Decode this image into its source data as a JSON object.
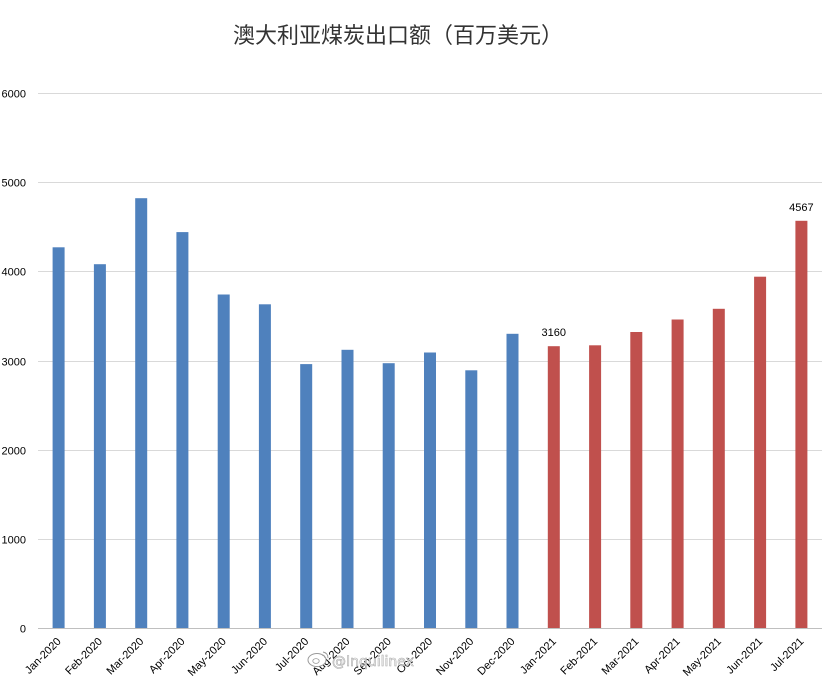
{
  "chart_data": {
    "type": "bar",
    "title": "澳大利亚煤炭出口额（百万美元）",
    "xlabel": "",
    "ylabel": "",
    "ylim": [
      0,
      6000
    ],
    "y_ticks": [
      0,
      1000,
      2000,
      3000,
      4000,
      5000,
      6000
    ],
    "grid": true,
    "legend": "none",
    "categories": [
      "Jan-2020",
      "Feb-2020",
      "Mar-2020",
      "Apr-2020",
      "May-2020",
      "Jun-2020",
      "Jul-2020",
      "Aug-2020",
      "Sep-2020",
      "Oct-2020",
      "Nov-2020",
      "Dec-2020",
      "Jan-2021",
      "Feb-2021",
      "Mar-2021",
      "Apr-2021",
      "May-2021",
      "Jun-2021",
      "Jul-2021"
    ],
    "values": [
      4270,
      4080,
      4820,
      4440,
      3740,
      3630,
      2960,
      3120,
      2970,
      3090,
      2890,
      3300,
      3160,
      3170,
      3320,
      3460,
      3580,
      3940,
      4567
    ],
    "bar_colors": [
      "#4f81bd",
      "#4f81bd",
      "#4f81bd",
      "#4f81bd",
      "#4f81bd",
      "#4f81bd",
      "#4f81bd",
      "#4f81bd",
      "#4f81bd",
      "#4f81bd",
      "#4f81bd",
      "#4f81bd",
      "#c0504d",
      "#c0504d",
      "#c0504d",
      "#c0504d",
      "#c0504d",
      "#c0504d",
      "#c0504d"
    ],
    "data_labels": [
      {
        "index": 12,
        "text": "3160"
      },
      {
        "index": 18,
        "text": "4567"
      }
    ]
  },
  "watermark": {
    "icon": "weibo-logo-icon",
    "text": "@Inquilinex"
  },
  "colors": {
    "gridline": "#d9d9d9",
    "axis": "#bfbfbf"
  }
}
